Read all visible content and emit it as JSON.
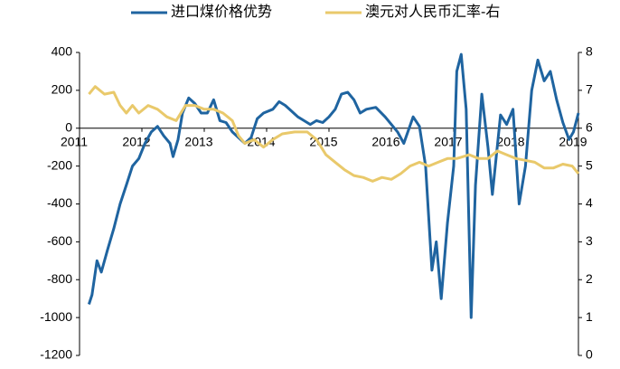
{
  "chart_data": {
    "type": "line",
    "xlim": [
      2011,
      2019
    ],
    "xticks": [
      2011,
      2012,
      2013,
      2014,
      2015,
      2016,
      2017,
      2018,
      2019
    ],
    "ylim": [
      -1200,
      400
    ],
    "yticks": [
      -1200,
      -1000,
      -800,
      -600,
      -400,
      -200,
      0,
      200,
      400
    ],
    "y2lim": [
      0,
      8
    ],
    "y2ticks": [
      0,
      1,
      2,
      3,
      4,
      5,
      6,
      7,
      8
    ],
    "legend": "top",
    "series": [
      {
        "name": "进口煤价格优势",
        "color": "#1f64a0",
        "x": [
          2011.15,
          2011.2,
          2011.28,
          2011.35,
          2011.45,
          2011.55,
          2011.65,
          2011.75,
          2011.85,
          2011.95,
          2012.05,
          2012.15,
          2012.25,
          2012.35,
          2012.45,
          2012.5,
          2012.58,
          2012.65,
          2012.75,
          2012.85,
          2012.95,
          2013.05,
          2013.15,
          2013.25,
          2013.35,
          2013.45,
          2013.55,
          2013.65,
          2013.75,
          2013.85,
          2013.95,
          2014.1,
          2014.2,
          2014.3,
          2014.4,
          2014.5,
          2014.6,
          2014.7,
          2014.8,
          2014.9,
          2015.0,
          2015.1,
          2015.2,
          2015.3,
          2015.4,
          2015.5,
          2015.6,
          2015.75,
          2015.9,
          2016.0,
          2016.1,
          2016.2,
          2016.35,
          2016.45,
          2016.55,
          2016.65,
          2016.72,
          2016.8,
          2016.9,
          2017.0,
          2017.05,
          2017.12,
          2017.2,
          2017.28,
          2017.35,
          2017.45,
          2017.55,
          2017.62,
          2017.75,
          2017.85,
          2017.95,
          2018.05,
          2018.15,
          2018.25,
          2018.35,
          2018.45,
          2018.55,
          2018.65,
          2018.75,
          2018.85,
          2018.92,
          2019.0
        ],
        "values": [
          -930,
          -880,
          -700,
          -760,
          -640,
          -530,
          -400,
          -300,
          -200,
          -160,
          -80,
          -20,
          10,
          -40,
          -80,
          -150,
          -60,
          80,
          160,
          130,
          80,
          80,
          150,
          40,
          30,
          -20,
          -50,
          -80,
          -50,
          50,
          80,
          100,
          140,
          120,
          90,
          60,
          40,
          20,
          40,
          30,
          60,
          100,
          180,
          190,
          150,
          80,
          100,
          110,
          60,
          20,
          -20,
          -80,
          60,
          10,
          -200,
          -750,
          -600,
          -900,
          -500,
          -200,
          300,
          390,
          100,
          -1000,
          -300,
          180,
          -100,
          -350,
          70,
          20,
          100,
          -400,
          -200,
          200,
          360,
          250,
          300,
          150,
          30,
          -60,
          -20,
          80
        ]
      },
      {
        "name": "澳元对人民币汇率-右",
        "color": "#e9c96b",
        "axis": "y2",
        "x": [
          2011.15,
          2011.25,
          2011.4,
          2011.55,
          2011.65,
          2011.75,
          2011.85,
          2011.95,
          2012.1,
          2012.25,
          2012.4,
          2012.55,
          2012.7,
          2012.85,
          2013.0,
          2013.15,
          2013.3,
          2013.45,
          2013.55,
          2013.65,
          2013.8,
          2013.95,
          2014.1,
          2014.25,
          2014.45,
          2014.65,
          2014.8,
          2014.95,
          2015.1,
          2015.25,
          2015.4,
          2015.55,
          2015.7,
          2015.85,
          2016.0,
          2016.15,
          2016.3,
          2016.45,
          2016.6,
          2016.75,
          2016.9,
          2017.05,
          2017.25,
          2017.4,
          2017.55,
          2017.7,
          2017.85,
          2018.0,
          2018.15,
          2018.3,
          2018.45,
          2018.6,
          2018.75,
          2018.9,
          2019.0
        ],
        "values": [
          6.9,
          7.1,
          6.9,
          6.95,
          6.6,
          6.4,
          6.6,
          6.4,
          6.6,
          6.5,
          6.3,
          6.2,
          6.6,
          6.6,
          6.5,
          6.5,
          6.4,
          6.2,
          5.8,
          5.6,
          5.7,
          5.5,
          5.7,
          5.85,
          5.9,
          5.9,
          5.7,
          5.3,
          5.1,
          4.9,
          4.75,
          4.7,
          4.6,
          4.7,
          4.65,
          4.8,
          5.0,
          5.1,
          5.0,
          5.1,
          5.2,
          5.2,
          5.3,
          5.2,
          5.2,
          5.4,
          5.3,
          5.2,
          5.15,
          5.1,
          4.95,
          4.95,
          5.05,
          5.0,
          4.8
        ]
      }
    ]
  }
}
